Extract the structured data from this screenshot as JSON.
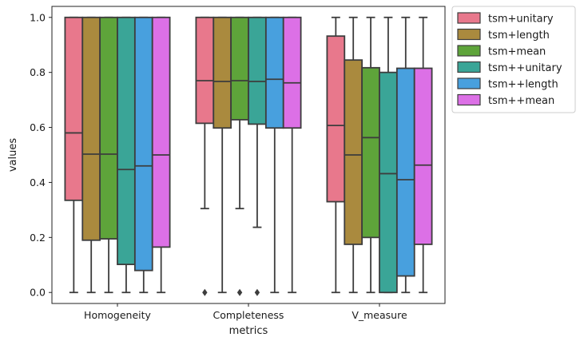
{
  "chart_data": {
    "type": "box",
    "xlabel": "metrics",
    "ylabel": "values",
    "ylim": [
      -0.04,
      1.04
    ],
    "yticks": [
      0.0,
      0.2,
      0.4,
      0.6,
      0.8,
      1.0
    ],
    "ytick_labels": [
      "0.0",
      "0.2",
      "0.4",
      "0.6",
      "0.8",
      "1.0"
    ],
    "categories": [
      "Homogeneity",
      "Completeness",
      "V_measure"
    ],
    "legend_position": "outside-top-right",
    "grid": false,
    "series": [
      {
        "name": "tsm+unitary",
        "color": "#e8788c",
        "boxes": [
          {
            "whisker_low": 0.0,
            "q1": 0.335,
            "median": 0.58,
            "q3": 1.0,
            "whisker_high": 1.0,
            "outliers": []
          },
          {
            "whisker_low": 0.305,
            "q1": 0.615,
            "median": 0.77,
            "q3": 1.0,
            "whisker_high": 1.0,
            "outliers": [
              0.0
            ]
          },
          {
            "whisker_low": 0.0,
            "q1": 0.33,
            "median": 0.607,
            "q3": 0.932,
            "whisker_high": 1.0,
            "outliers": []
          }
        ]
      },
      {
        "name": "tsm+length",
        "color": "#aa8a3e",
        "boxes": [
          {
            "whisker_low": 0.0,
            "q1": 0.19,
            "median": 0.503,
            "q3": 1.0,
            "whisker_high": 1.0,
            "outliers": []
          },
          {
            "whisker_low": 0.0,
            "q1": 0.598,
            "median": 0.767,
            "q3": 1.0,
            "whisker_high": 1.0,
            "outliers": []
          },
          {
            "whisker_low": 0.0,
            "q1": 0.175,
            "median": 0.5,
            "q3": 0.845,
            "whisker_high": 1.0,
            "outliers": []
          }
        ]
      },
      {
        "name": "tsm+mean",
        "color": "#5ea43a",
        "boxes": [
          {
            "whisker_low": 0.0,
            "q1": 0.195,
            "median": 0.503,
            "q3": 1.0,
            "whisker_high": 1.0,
            "outliers": []
          },
          {
            "whisker_low": 0.305,
            "q1": 0.628,
            "median": 0.77,
            "q3": 1.0,
            "whisker_high": 1.0,
            "outliers": [
              0.0
            ]
          },
          {
            "whisker_low": 0.0,
            "q1": 0.2,
            "median": 0.563,
            "q3": 0.817,
            "whisker_high": 1.0,
            "outliers": []
          }
        ]
      },
      {
        "name": "tsm++unitary",
        "color": "#3aa597",
        "boxes": [
          {
            "whisker_low": 0.0,
            "q1": 0.102,
            "median": 0.447,
            "q3": 1.0,
            "whisker_high": 1.0,
            "outliers": []
          },
          {
            "whisker_low": 0.237,
            "q1": 0.612,
            "median": 0.767,
            "q3": 1.0,
            "whisker_high": 1.0,
            "outliers": [
              0.0
            ]
          },
          {
            "whisker_low": 0.0,
            "q1": 0.0,
            "median": 0.432,
            "q3": 0.8,
            "whisker_high": 1.0,
            "outliers": []
          }
        ]
      },
      {
        "name": "tsm++length",
        "color": "#48a0de",
        "boxes": [
          {
            "whisker_low": 0.0,
            "q1": 0.08,
            "median": 0.46,
            "q3": 1.0,
            "whisker_high": 1.0,
            "outliers": []
          },
          {
            "whisker_low": 0.0,
            "q1": 0.598,
            "median": 0.775,
            "q3": 1.0,
            "whisker_high": 1.0,
            "outliers": []
          },
          {
            "whisker_low": 0.0,
            "q1": 0.06,
            "median": 0.41,
            "q3": 0.815,
            "whisker_high": 1.0,
            "outliers": []
          }
        ]
      },
      {
        "name": "tsm++mean",
        "color": "#dc70e6",
        "boxes": [
          {
            "whisker_low": 0.0,
            "q1": 0.165,
            "median": 0.5,
            "q3": 1.0,
            "whisker_high": 1.0,
            "outliers": []
          },
          {
            "whisker_low": 0.0,
            "q1": 0.598,
            "median": 0.762,
            "q3": 1.0,
            "whisker_high": 1.0,
            "outliers": []
          },
          {
            "whisker_low": 0.0,
            "q1": 0.175,
            "median": 0.463,
            "q3": 0.815,
            "whisker_high": 1.0,
            "outliers": []
          }
        ]
      }
    ]
  }
}
